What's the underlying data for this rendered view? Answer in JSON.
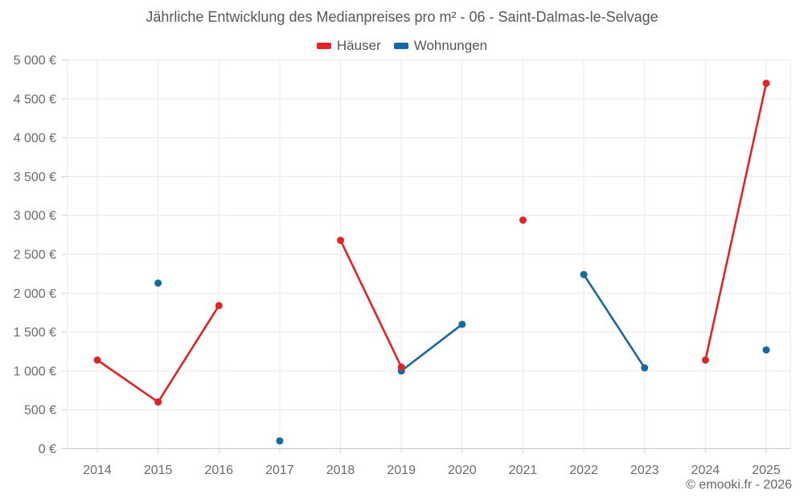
{
  "footer": {
    "copyright": "© emooki.fr - 2026"
  },
  "chart_data": {
    "type": "line",
    "title": "Jährliche Entwicklung des Medianpreises pro m² - 06 - Saint-Dalmas-le-Selvage",
    "x": [
      2014,
      2015,
      2016,
      2017,
      2018,
      2019,
      2020,
      2021,
      2022,
      2023,
      2024,
      2025
    ],
    "x_ticks": [
      "2014",
      "2015",
      "2016",
      "2017",
      "2018",
      "2019",
      "2020",
      "2021",
      "2022",
      "2023",
      "2024",
      "2025"
    ],
    "series": [
      {
        "id": "haeuser",
        "name": "Häuser",
        "color": "#e02424",
        "values": [
          1140,
          600,
          1840,
          null,
          2680,
          1050,
          null,
          2940,
          null,
          null,
          1140,
          4700
        ]
      },
      {
        "id": "wohnungen",
        "name": "Wohnungen",
        "color": "#17699f",
        "values": [
          null,
          2130,
          null,
          100,
          null,
          1000,
          1600,
          null,
          2240,
          1040,
          null,
          1270
        ]
      }
    ],
    "ylim": [
      0,
      5000
    ],
    "y_tick_step": 500,
    "y_ticks": [
      "0 €",
      "500 €",
      "1 000 €",
      "1 500 €",
      "2 000 €",
      "2 500 €",
      "3 000 €",
      "3 500 €",
      "4 000 €",
      "4 500 €",
      "5 000 €"
    ],
    "unit": "€",
    "grid": true,
    "gap_policy": "years with no value break the line",
    "legend_position": "top",
    "grid_color": "#e9e9e9",
    "axis_color": "#c8c8c8",
    "tick_color": "#d2d2d2",
    "text_color": "#6b6b6b"
  }
}
